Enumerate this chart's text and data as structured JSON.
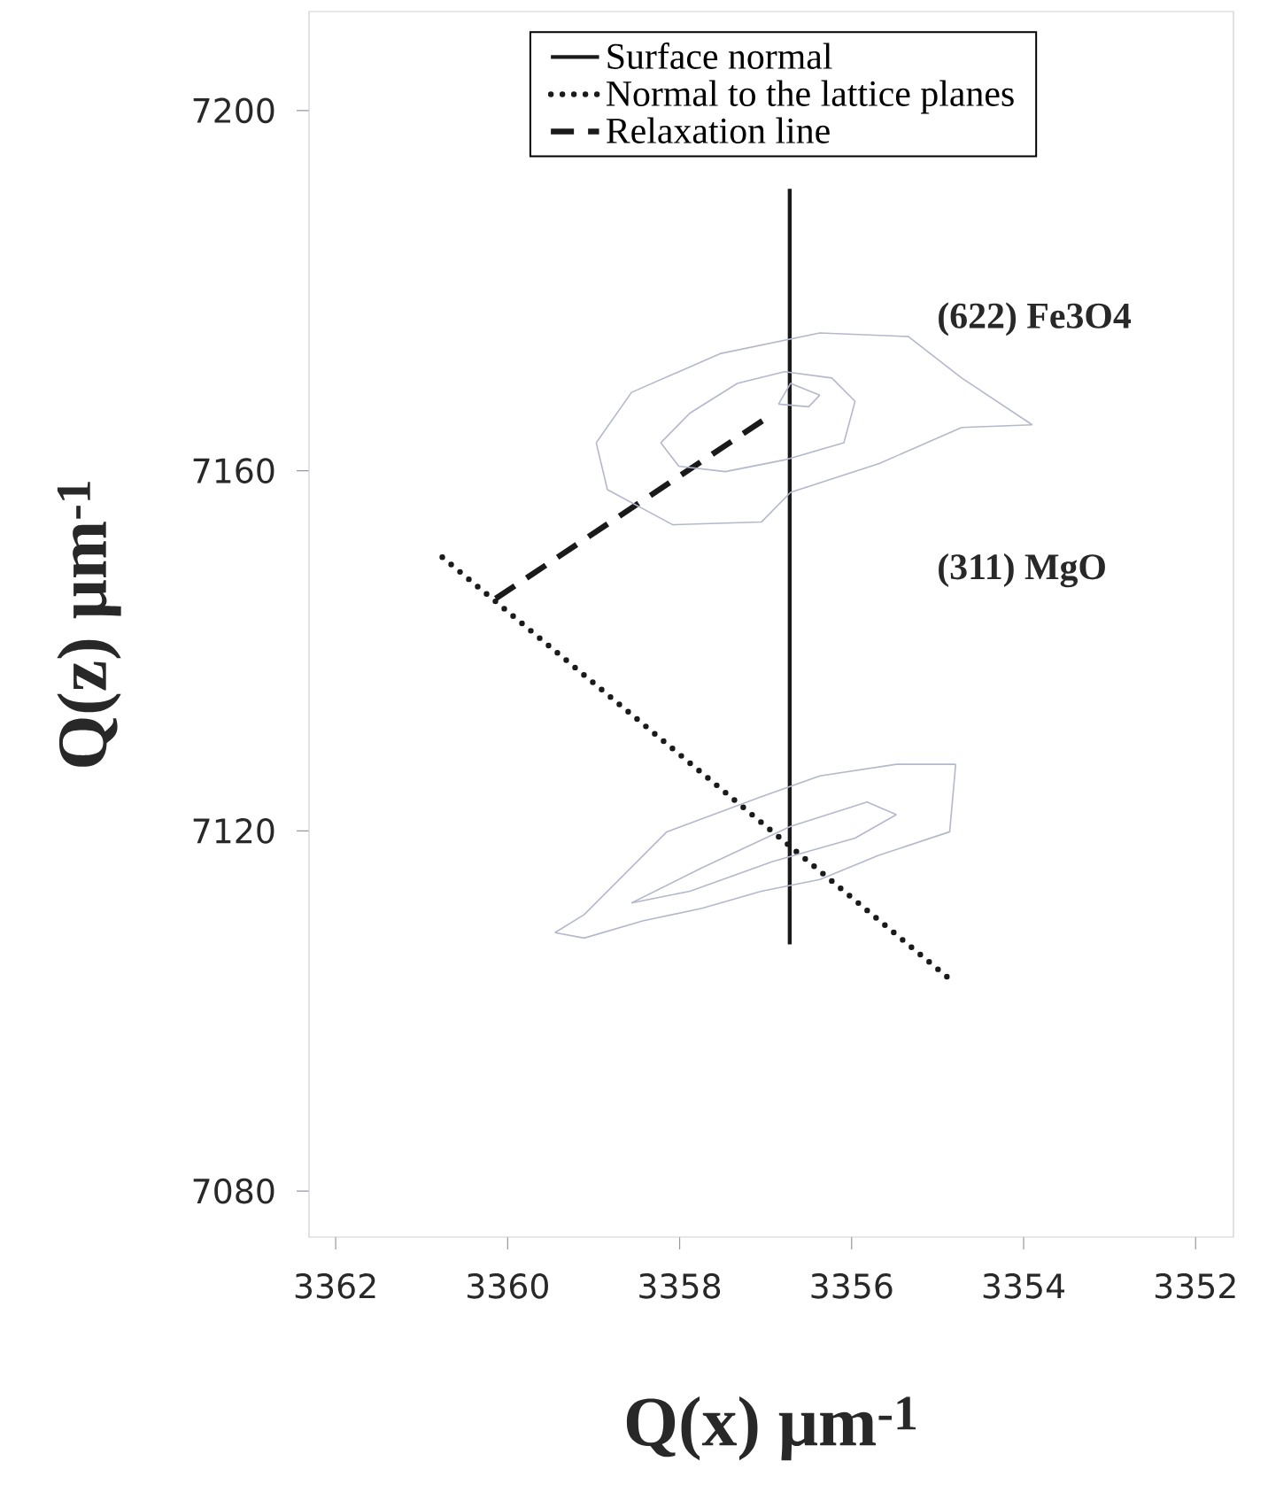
{
  "chart_data": {
    "type": "line",
    "xlabel": "Q(x) μm$^{-1}$",
    "ylabel": "Q(z) μm$^{-1}$",
    "xlim": [
      3362.31,
      3351.56
    ],
    "ylim": [
      7074.9,
      7211.0
    ],
    "xticks": [
      3362,
      3360,
      3358,
      3356,
      3354,
      3352
    ],
    "yticks": [
      7080,
      7120,
      7160,
      7200
    ],
    "legend": "top",
    "series": [
      {
        "name": "Surface normal",
        "color": "#1a1a1a",
        "line_style": "solid",
        "x": [
          3356.72,
          3356.72
        ],
        "values": [
          7191.3,
          7107.4
        ]
      },
      {
        "name": "Normal to the lattice planes",
        "color": "#1a1a1a",
        "line_style": "dotted",
        "x": [
          3360.76,
          3354.79
        ],
        "values": [
          7150.4,
          7103.0
        ]
      },
      {
        "name": "Relaxation line",
        "color": "#1a1a1a",
        "line_style": "dashed",
        "x": [
          3360.14,
          3356.95
        ],
        "values": [
          7145.8,
          7166.1
        ]
      },
      {
        "color": "#b4b8cc",
        "line_style": "solid",
        "x": [
          3358.97,
          3358.56,
          3357.53,
          3356.37,
          3355.34,
          3354.72,
          3353.9
        ],
        "values": [
          7163.1,
          7168.7,
          7173.0,
          7175.3,
          7174.9,
          7170.3,
          7165.1
        ]
      },
      {
        "color": "#b4b8cc",
        "line_style": "solid",
        "x": [
          3353.9,
          3354.72,
          3355.68,
          3356.71,
          3357.05,
          3358.08,
          3358.84,
          3358.97
        ],
        "values": [
          7165.1,
          7164.8,
          7160.8,
          7157.6,
          7154.3,
          7154.0,
          7157.9,
          7163.1
        ]
      },
      {
        "color": "#b4b8cc",
        "line_style": "solid",
        "x": [
          3358.22,
          3357.88,
          3357.33,
          3356.78,
          3356.23,
          3355.96
        ],
        "values": [
          7163.1,
          7166.4,
          7169.7,
          7171.0,
          7170.3,
          7167.7
        ]
      },
      {
        "color": "#b4b8cc",
        "line_style": "solid",
        "x": [
          3355.96,
          3356.09,
          3356.78,
          3357.47,
          3358.01,
          3358.22
        ],
        "values": [
          7167.7,
          7163.1,
          7161.2,
          7159.9,
          7160.5,
          7163.1
        ]
      },
      {
        "color": "#b4b8cc",
        "line_style": "solid",
        "x": [
          3356.85,
          3356.71,
          3356.37
        ],
        "values": [
          7167.4,
          7169.7,
          7168.4
        ]
      },
      {
        "color": "#b4b8cc",
        "line_style": "solid",
        "x": [
          3356.37,
          3356.5,
          3356.85
        ],
        "values": [
          7168.4,
          7167.1,
          7167.4
        ]
      },
      {
        "color": "#b4b8cc",
        "line_style": "solid",
        "x": [
          3359.45,
          3359.11,
          3358.15,
          3357.05,
          3356.37,
          3355.48,
          3354.79
        ],
        "values": [
          7108.7,
          7110.7,
          7119.9,
          7123.8,
          7126.1,
          7127.4,
          7127.4
        ]
      },
      {
        "color": "#b4b8cc",
        "line_style": "solid",
        "x": [
          3354.79,
          3354.86,
          3355.68,
          3356.37,
          3357.05,
          3357.74,
          3358.43,
          3359.11,
          3359.45
        ],
        "values": [
          7127.4,
          7119.9,
          7117.3,
          7114.6,
          7113.3,
          7111.4,
          7110.0,
          7108.1,
          7108.7
        ]
      },
      {
        "color": "#b4b8cc",
        "line_style": "solid",
        "x": [
          3358.56,
          3357.74,
          3356.71,
          3355.82,
          3355.48
        ],
        "values": [
          7112.0,
          7115.9,
          7120.5,
          7123.2,
          7121.8
        ]
      },
      {
        "color": "#b4b8cc",
        "line_style": "solid",
        "x": [
          3355.48,
          3355.96,
          3356.92,
          3357.88,
          3358.56
        ],
        "values": [
          7121.8,
          7119.2,
          7116.6,
          7113.3,
          7112.0
        ]
      }
    ],
    "annotations": [
      "(622) Fe3O4",
      "(311) MgO"
    ]
  }
}
